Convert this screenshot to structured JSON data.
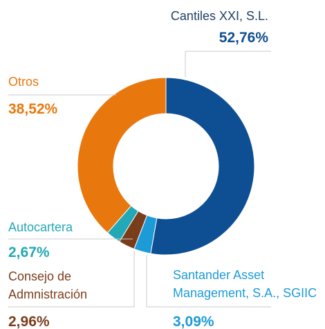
{
  "chart_data": {
    "type": "donut",
    "categories": [
      "Cantiles XXI, S.L.",
      "Santander Asset Management, S.A., SGIIC",
      "Consejo de Admnistración",
      "Autocartera",
      "Otros"
    ],
    "values": [
      52.76,
      3.09,
      2.96,
      2.67,
      38.52
    ],
    "value_labels": [
      "52,76%",
      "3,09%",
      "2,96%",
      "2,67%",
      "38,52%"
    ],
    "colors": [
      "#0e4e92",
      "#1d9bd8",
      "#7a3d1c",
      "#22a8b6",
      "#e8780e"
    ]
  }
}
